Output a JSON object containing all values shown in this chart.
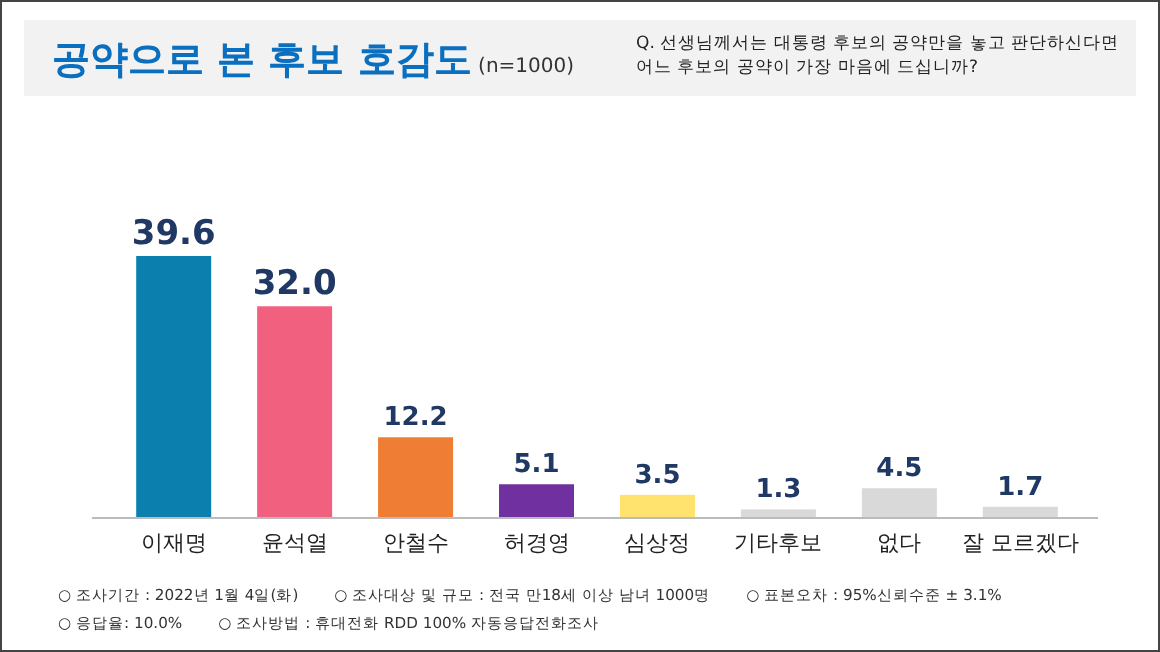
{
  "chart_data": {
    "type": "bar",
    "title": "공약으로 본 후보 호감도",
    "subtitle": "(n=1000)",
    "categories": [
      "이재명",
      "윤석열",
      "안철수",
      "허경영",
      "심상정",
      "기타후보",
      "없다",
      "잘 모르겠다"
    ],
    "values": [
      39.6,
      32.0,
      12.2,
      5.1,
      3.5,
      1.3,
      4.5,
      1.7
    ],
    "value_labels": [
      "39.6",
      "32.0",
      "12.2",
      "5.1",
      "3.5",
      "1.3",
      "4.5",
      "1.7"
    ],
    "colors": [
      "#0b7fae",
      "#f2607f",
      "#ef7d33",
      "#7030a0",
      "#ffe36e",
      "#d9d9d9",
      "#d9d9d9",
      "#d9d9d9"
    ],
    "annotations": [
      "Q. 선생님께서는 대통령 후보의 공약만을 놓고 판단하신다면 어느 후보의 공약이 가장 마음에 드십니까?",
      "○ 조사기간 : 2022년 1월 4일(화)",
      "○ 조사대상 및 규모 : 전국 만18세 이상 남녀 1000명",
      "○ 표본오차 : 95%신뢰수준 ± 3.1%",
      "○ 응답율: 10.0%",
      "○ 조사방법 : 휴대전화 RDD 100% 자동응답전화조사"
    ]
  }
}
